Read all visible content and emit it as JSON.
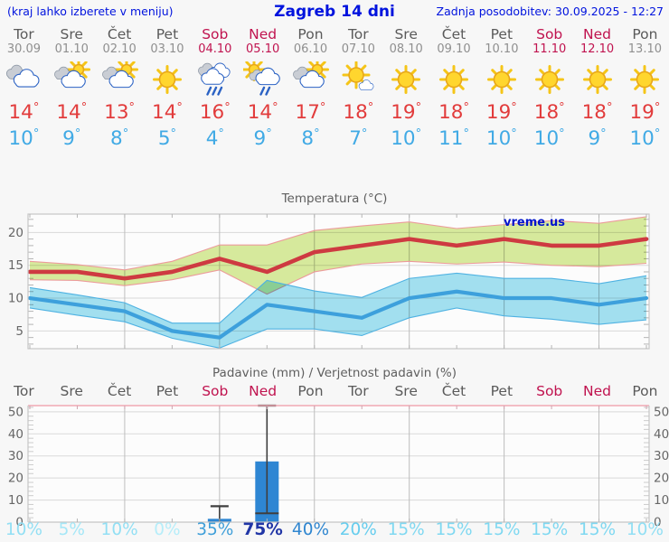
{
  "header": {
    "left_note": "(kraj lahko izberete v meniju)",
    "title": "Zagreb 14 dni",
    "updated": "Zadnja posodobitev: 30.09.2025 - 12:27"
  },
  "colors": {
    "header_blue": "#0013de",
    "weekend": "#c0134f",
    "day_name": "#5a5a5a",
    "day_date": "#8f8f8f",
    "tmax_text": "#e23c3c",
    "tmin_text": "#41aae5",
    "axis_text": "#666666",
    "hgrid": "#d9d9d9",
    "vgrid": "#bdbdbd",
    "border": "#c6c6c6",
    "minor_tick": "#b5b5b5",
    "precip_top_border": "#f0a8b4",
    "whisker": "#3f3f3f",
    "bar": "#2e86d3"
  },
  "days": [
    {
      "name": "Tor",
      "date": "30.09",
      "weekend": false,
      "icon": "cloudy",
      "tmax": "14",
      "tmin": "10",
      "prob": "10%",
      "prob_color": "#92dff4",
      "prob_bold": false
    },
    {
      "name": "Sre",
      "date": "01.10",
      "weekend": false,
      "icon": "partly-cloudy",
      "tmax": "14",
      "tmin": "9",
      "prob": "5%",
      "prob_color": "#a5e7f7",
      "prob_bold": false
    },
    {
      "name": "Čet",
      "date": "02.10",
      "weekend": false,
      "icon": "partly-cloudy",
      "tmax": "13",
      "tmin": "8",
      "prob": "10%",
      "prob_color": "#92dff4",
      "prob_bold": false
    },
    {
      "name": "Pet",
      "date": "03.10",
      "weekend": false,
      "icon": "sunny",
      "tmax": "14",
      "tmin": "5",
      "prob": "0%",
      "prob_color": "#b6edf9",
      "prob_bold": false
    },
    {
      "name": "Sob",
      "date": "04.10",
      "weekend": true,
      "icon": "rain",
      "tmax": "16",
      "tmin": "4",
      "prob": "35%",
      "prob_color": "#3f9fd9",
      "prob_bold": false
    },
    {
      "name": "Ned",
      "date": "05.10",
      "weekend": true,
      "icon": "sun-rain",
      "tmax": "14",
      "tmin": "9",
      "prob": "75%",
      "prob_color": "#2136a6",
      "prob_bold": true
    },
    {
      "name": "Pon",
      "date": "06.10",
      "weekend": false,
      "icon": "partly-cloudy",
      "tmax": "17",
      "tmin": "8",
      "prob": "40%",
      "prob_color": "#2f86d0",
      "prob_bold": false
    },
    {
      "name": "Tor",
      "date": "07.10",
      "weekend": false,
      "icon": "mostly-sunny",
      "tmax": "18",
      "tmin": "7",
      "prob": "20%",
      "prob_color": "#66cdee",
      "prob_bold": false
    },
    {
      "name": "Sre",
      "date": "08.10",
      "weekend": false,
      "icon": "sunny",
      "tmax": "19",
      "tmin": "10",
      "prob": "15%",
      "prob_color": "#7fd8f1",
      "prob_bold": false
    },
    {
      "name": "Čet",
      "date": "09.10",
      "weekend": false,
      "icon": "sunny",
      "tmax": "18",
      "tmin": "11",
      "prob": "15%",
      "prob_color": "#7fd8f1",
      "prob_bold": false
    },
    {
      "name": "Pet",
      "date": "10.10",
      "weekend": false,
      "icon": "sunny",
      "tmax": "19",
      "tmin": "10",
      "prob": "15%",
      "prob_color": "#7fd8f1",
      "prob_bold": false
    },
    {
      "name": "Sob",
      "date": "11.10",
      "weekend": true,
      "icon": "sunny",
      "tmax": "18",
      "tmin": "10",
      "prob": "15%",
      "prob_color": "#7fd8f1",
      "prob_bold": false
    },
    {
      "name": "Ned",
      "date": "12.10",
      "weekend": true,
      "icon": "sunny",
      "tmax": "18",
      "tmin": "9",
      "prob": "15%",
      "prob_color": "#7fd8f1",
      "prob_bold": false
    },
    {
      "name": "Pon",
      "date": "13.10",
      "weekend": false,
      "icon": "sunny",
      "tmax": "19",
      "tmin": "10",
      "prob": "10%",
      "prob_color": "#92dff4",
      "prob_bold": false
    }
  ],
  "chart_data": [
    {
      "type": "line",
      "title": "Temperatura (°C)",
      "watermark": "vreme.us",
      "x_days": [
        "Tor",
        "Sre",
        "Čet",
        "Pet",
        "Sob",
        "Ned",
        "Pon",
        "Tor",
        "Sre",
        "Čet",
        "Pet",
        "Sob",
        "Ned",
        "Pon"
      ],
      "ylim": [
        2.3,
        22.8
      ],
      "yticks": [
        5,
        10,
        15,
        20
      ],
      "minor_step": 1,
      "grid": true,
      "legend": "none",
      "series": [
        {
          "name": "max-temperature",
          "color": "#ce3a41",
          "line_width": 4.6,
          "band_fill": "#d9ec9e",
          "band_edge": "#ec9b9b",
          "values": [
            14,
            14,
            13,
            14,
            16,
            14,
            17,
            18,
            19,
            18,
            19,
            18,
            18,
            19
          ],
          "band_upper": [
            15.6,
            15.1,
            14.3,
            15.6,
            18.1,
            18.1,
            20.3,
            21.0,
            21.6,
            20.6,
            21.2,
            21.8,
            21.4,
            22.4
          ],
          "band_lower": [
            12.8,
            12.7,
            11.9,
            12.8,
            14.3,
            10.6,
            14.0,
            15.2,
            15.6,
            15.2,
            15.5,
            15.0,
            14.8,
            15.3
          ]
        },
        {
          "name": "min-temperature",
          "color": "#3da0dc",
          "line_width": 4.2,
          "band_fill": "#a4e2f2",
          "band_edge": "#4fb2e2",
          "values": [
            10,
            9,
            8,
            5,
            4,
            9,
            8,
            7,
            10,
            11,
            10,
            10,
            9,
            10
          ],
          "band_upper": [
            11.6,
            10.5,
            9.3,
            6.2,
            6.2,
            12.7,
            11.1,
            10.1,
            13.0,
            13.8,
            13.0,
            13.0,
            12.2,
            13.4
          ],
          "band_lower": [
            8.5,
            7.4,
            6.4,
            3.9,
            2.4,
            5.3,
            5.3,
            4.3,
            7.0,
            8.5,
            7.3,
            6.8,
            6.0,
            6.7
          ]
        }
      ]
    },
    {
      "type": "bar",
      "title": "Padavine (mm) / Verjetnost padavin (%)",
      "categories": [
        "Tor",
        "Sre",
        "Čet",
        "Pet",
        "Sob",
        "Ned",
        "Pon",
        "Tor",
        "Sre",
        "Čet",
        "Pet",
        "Sob",
        "Ned",
        "Pon"
      ],
      "weekend_flags": [
        false,
        false,
        false,
        false,
        true,
        true,
        false,
        false,
        false,
        false,
        false,
        true,
        true,
        false
      ],
      "values": [
        0,
        0,
        0,
        0,
        1.5,
        27.5,
        0,
        0,
        0,
        0,
        0,
        0,
        0,
        0
      ],
      "whiskers": [
        {
          "day": 4,
          "high": 7.2,
          "low": 0,
          "low_cap": false
        },
        {
          "day": 5,
          "high": 52.8,
          "low": 4,
          "low_cap": true
        }
      ],
      "probabilities": [
        "10%",
        "5%",
        "10%",
        "0%",
        "35%",
        "75%",
        "40%",
        "20%",
        "15%",
        "15%",
        "15%",
        "15%",
        "15%",
        "10%"
      ],
      "ylim": [
        0,
        52.8
      ],
      "yticks": [
        0,
        10,
        20,
        30,
        40,
        50
      ],
      "minor_step": 2,
      "grid": true
    }
  ]
}
